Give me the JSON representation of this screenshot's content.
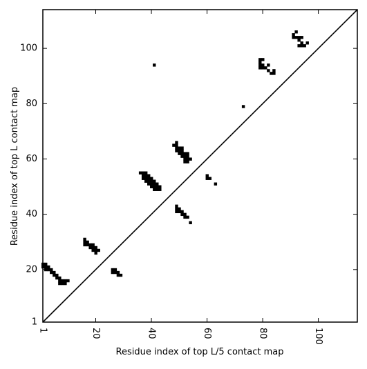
{
  "chart_data": {
    "type": "heatmap",
    "title": "",
    "xlabel": "Residue index of top L/5 contact map",
    "ylabel": "Residue index of top L contact map",
    "xlim": [
      1,
      114
    ],
    "ylim": [
      1,
      114
    ],
    "xticks": [
      1,
      20,
      40,
      60,
      80,
      100
    ],
    "yticks": [
      1,
      20,
      40,
      60,
      80,
      100
    ],
    "xtick_rotation": 90,
    "diagonal_line": true,
    "grid": false,
    "cell_color": "#000000",
    "line_color": "#000000",
    "cells": [
      [
        1,
        21
      ],
      [
        1,
        22
      ],
      [
        2,
        21
      ],
      [
        2,
        22
      ],
      [
        2,
        20
      ],
      [
        3,
        20
      ],
      [
        3,
        21
      ],
      [
        4,
        19
      ],
      [
        4,
        20
      ],
      [
        5,
        19
      ],
      [
        5,
        18
      ],
      [
        6,
        18
      ],
      [
        6,
        17
      ],
      [
        7,
        17
      ],
      [
        7,
        16
      ],
      [
        7,
        15
      ],
      [
        8,
        15
      ],
      [
        8,
        16
      ],
      [
        9,
        15
      ],
      [
        9,
        16
      ],
      [
        10,
        16
      ],
      [
        16,
        31
      ],
      [
        16,
        30
      ],
      [
        16,
        29
      ],
      [
        17,
        30
      ],
      [
        17,
        29
      ],
      [
        18,
        28
      ],
      [
        18,
        29
      ],
      [
        19,
        27
      ],
      [
        19,
        28
      ],
      [
        19,
        29
      ],
      [
        20,
        26
      ],
      [
        20,
        27
      ],
      [
        20,
        28
      ],
      [
        21,
        27
      ],
      [
        26,
        20
      ],
      [
        26,
        19
      ],
      [
        27,
        20
      ],
      [
        27,
        19
      ],
      [
        28,
        18
      ],
      [
        28,
        19
      ],
      [
        29,
        18
      ],
      [
        36,
        55
      ],
      [
        37,
        55
      ],
      [
        37,
        54
      ],
      [
        37,
        53
      ],
      [
        38,
        55
      ],
      [
        38,
        54
      ],
      [
        38,
        53
      ],
      [
        38,
        52
      ],
      [
        39,
        54
      ],
      [
        39,
        53
      ],
      [
        39,
        52
      ],
      [
        39,
        51
      ],
      [
        40,
        53
      ],
      [
        40,
        52
      ],
      [
        40,
        51
      ],
      [
        40,
        50
      ],
      [
        41,
        52
      ],
      [
        41,
        51
      ],
      [
        41,
        50
      ],
      [
        41,
        49
      ],
      [
        42,
        51
      ],
      [
        42,
        50
      ],
      [
        42,
        49
      ],
      [
        43,
        50
      ],
      [
        43,
        49
      ],
      [
        41,
        94
      ],
      [
        48,
        65
      ],
      [
        49,
        66
      ],
      [
        49,
        65
      ],
      [
        49,
        64
      ],
      [
        49,
        63
      ],
      [
        50,
        64
      ],
      [
        50,
        63
      ],
      [
        50,
        62
      ],
      [
        51,
        64
      ],
      [
        51,
        63
      ],
      [
        51,
        62
      ],
      [
        51,
        61
      ],
      [
        52,
        62
      ],
      [
        52,
        61
      ],
      [
        52,
        60
      ],
      [
        52,
        59
      ],
      [
        53,
        62
      ],
      [
        53,
        61
      ],
      [
        53,
        60
      ],
      [
        53,
        59
      ],
      [
        54,
        60
      ],
      [
        49,
        43
      ],
      [
        49,
        42
      ],
      [
        49,
        41
      ],
      [
        50,
        42
      ],
      [
        50,
        41
      ],
      [
        51,
        41
      ],
      [
        51,
        40
      ],
      [
        52,
        40
      ],
      [
        52,
        39
      ],
      [
        53,
        39
      ],
      [
        54,
        37
      ],
      [
        60,
        54
      ],
      [
        60,
        53
      ],
      [
        61,
        53
      ],
      [
        63,
        51
      ],
      [
        73,
        79
      ],
      [
        79,
        96
      ],
      [
        79,
        95
      ],
      [
        79,
        94
      ],
      [
        79,
        93
      ],
      [
        80,
        96
      ],
      [
        80,
        94
      ],
      [
        80,
        93
      ],
      [
        81,
        93
      ],
      [
        82,
        94
      ],
      [
        82,
        92
      ],
      [
        83,
        91
      ],
      [
        84,
        91
      ],
      [
        84,
        92
      ],
      [
        91,
        105
      ],
      [
        91,
        104
      ],
      [
        92,
        106
      ],
      [
        92,
        104
      ],
      [
        93,
        103
      ],
      [
        93,
        104
      ],
      [
        93,
        101
      ],
      [
        94,
        104
      ],
      [
        94,
        102
      ],
      [
        94,
        101
      ],
      [
        95,
        101
      ],
      [
        96,
        102
      ]
    ]
  }
}
